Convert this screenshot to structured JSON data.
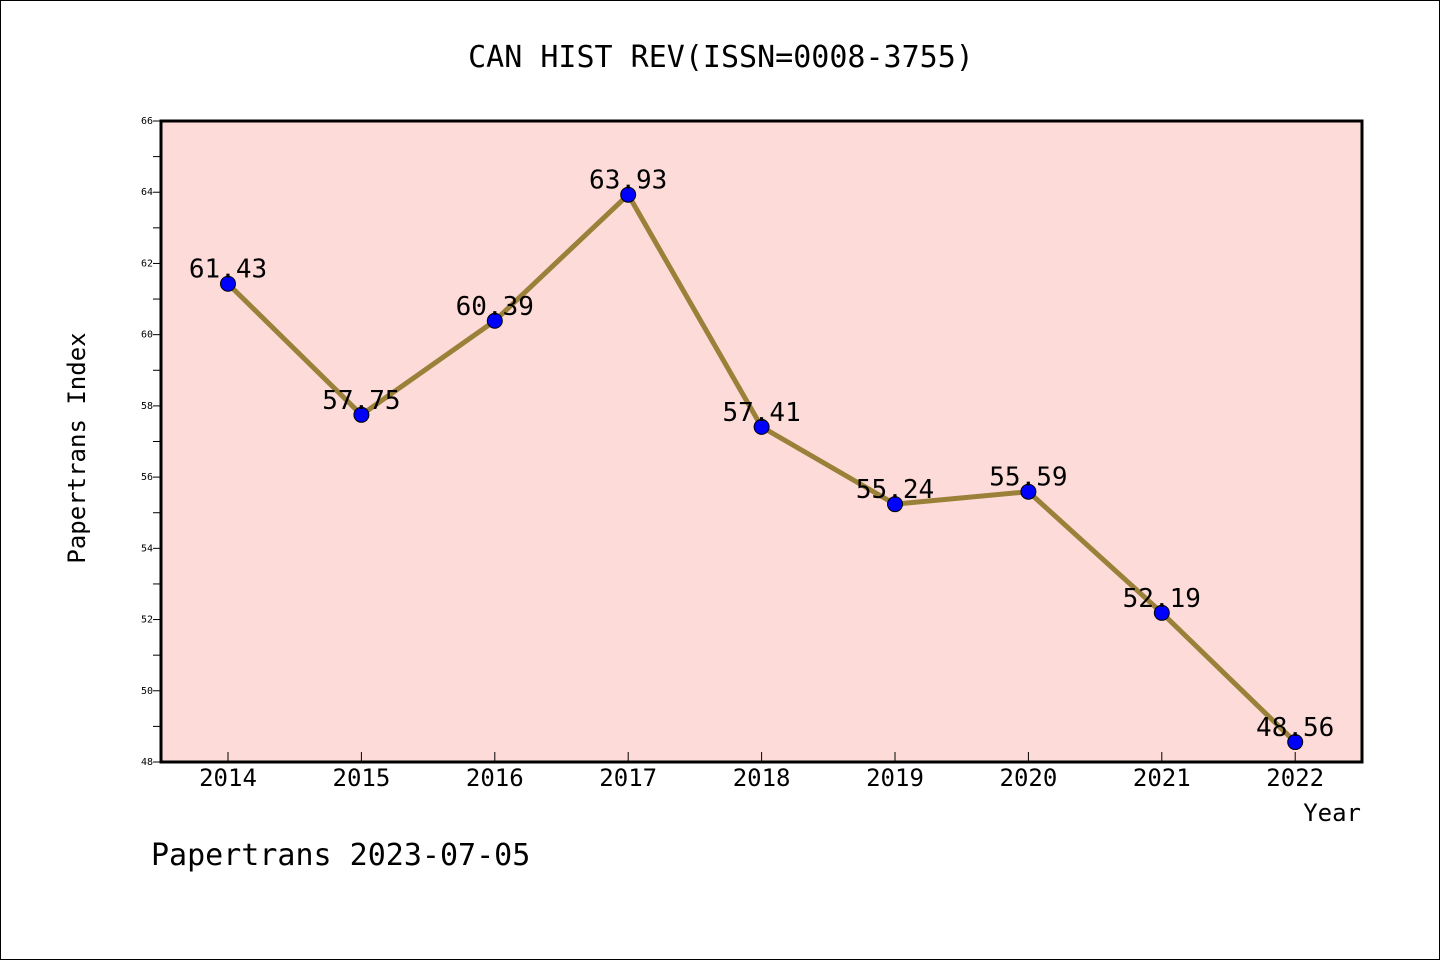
{
  "chart_data": {
    "type": "line",
    "title": "CAN HIST REV(ISSN=0008-3755)",
    "xlabel": "Year",
    "ylabel": "Papertrans Index",
    "categories": [
      "2014",
      "2015",
      "2016",
      "2017",
      "2018",
      "2019",
      "2020",
      "2021",
      "2022"
    ],
    "values": [
      61.43,
      57.75,
      60.39,
      63.93,
      57.41,
      55.24,
      55.59,
      52.19,
      48.56
    ],
    "data_labels": [
      "61.43",
      "57.75",
      "60.39",
      "63.93",
      "57.41",
      "55.24",
      "55.59",
      "52.19",
      "48.56"
    ],
    "ylim": [
      48,
      66
    ],
    "yticks": [
      48,
      50,
      52,
      54,
      56,
      58,
      60,
      62,
      64,
      66
    ],
    "ytick_labels": [
      "48",
      "50",
      "52",
      "54",
      "56",
      "58",
      "60",
      "62",
      "64",
      "66"
    ],
    "grid": false,
    "colors": {
      "plot_background": "#fddbd8",
      "line": "#9a8038",
      "marker": "#0000ff"
    }
  },
  "footer": {
    "text": "Papertrans 2023-07-05"
  }
}
